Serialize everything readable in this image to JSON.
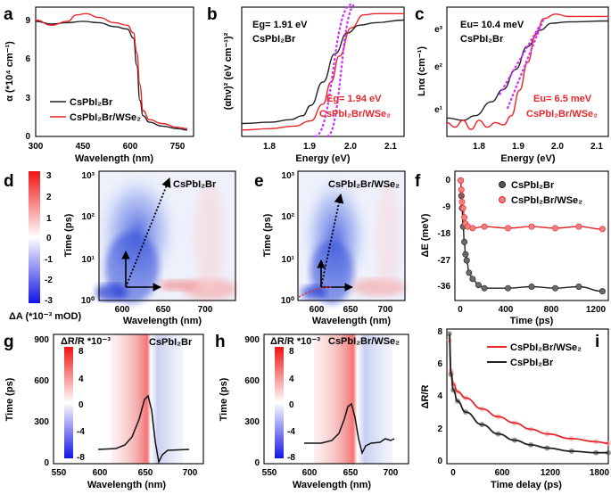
{
  "colors": {
    "black": "#222222",
    "red": "#e8262c",
    "magenta": "#cc33ff",
    "blue": "#1f3fd6",
    "pos": "#f01f1f"
  },
  "panels": {
    "a": {
      "letter": "a",
      "ylabel": "α (*10⁴ cm⁻¹)",
      "xlabel": "Wavelength (nm)",
      "xticks": [
        "300",
        "450",
        "600",
        "750"
      ],
      "yticks": [
        "0",
        "3",
        "6",
        "9"
      ],
      "legend": [
        "CsPbI₂Br",
        "CsPbI₂Br/WSe₂"
      ]
    },
    "b": {
      "letter": "b",
      "ylabel": "(αhν)² (eV cm⁻¹)²",
      "xlabel": "Energy (eV)",
      "xticks": [
        "1.8",
        "1.9",
        "2.0",
        "2.1"
      ],
      "ann1": "Eg= 1.91 eV",
      "ann1b": "CsPbI₂Br",
      "ann2": "Eg= 1.94 eV",
      "ann2b": "CsPbI₂Br/WSe₂"
    },
    "c": {
      "letter": "c",
      "ylabel": "Lnα (cm⁻¹)",
      "xlabel": "Energy (eV)",
      "xticks": [
        "1.8",
        "1.9",
        "2.0",
        "2.1"
      ],
      "yticks": [
        "e¹",
        "e²",
        "e³"
      ],
      "ann1": "Eu= 10.4 meV",
      "ann1b": "CsPbI₂Br",
      "ann2": "Eu= 6.5 meV",
      "ann2b": "CsPbI₂Br/WSe₂"
    },
    "d": {
      "letter": "d",
      "ylabel": "Time (ps)",
      "xlabel": "Wavelength (nm)",
      "xticks": [
        "600",
        "650",
        "700"
      ],
      "yticks": [
        "10⁰",
        "10¹",
        "10²",
        "10³"
      ],
      "label": "CsPbI₂Br",
      "cbar_title": "ΔA (*10⁻³ mOD)",
      "cbar_ticks": [
        "3",
        "2",
        "1",
        "0",
        "-1",
        "-2",
        "-3"
      ]
    },
    "e": {
      "letter": "e",
      "ylabel": "Time (ps)",
      "xlabel": "Wavelength (nm)",
      "xticks": [
        "600",
        "650",
        "700"
      ],
      "yticks": [
        "10⁰",
        "10¹",
        "10²",
        "10³"
      ],
      "label": "CsPbI₂Br/WSe₂"
    },
    "f": {
      "letter": "f",
      "ylabel": "ΔE (meV)",
      "xlabel": "Time (ps)",
      "xticks": [
        "0",
        "400",
        "800",
        "1200"
      ],
      "yticks": [
        "0",
        "-9",
        "-18",
        "-27",
        "-36"
      ],
      "legend": [
        "CsPbI₂Br",
        "CsPbI₂Br/WSe₂"
      ]
    },
    "g": {
      "letter": "g",
      "ylabel": "Time (ps)",
      "xlabel": "Wavelength (nm)",
      "xticks": [
        "550",
        "600",
        "650",
        "700"
      ],
      "yticks": [
        "0",
        "300",
        "600",
        "900"
      ],
      "label": "CsPbI₂Br",
      "cbar_title": "ΔR/R *10⁻³",
      "cbar_ticks": [
        "8",
        "4",
        "0",
        "-4",
        "-8"
      ]
    },
    "h": {
      "letter": "h",
      "ylabel": "Time (ps)",
      "xlabel": "Wavelength (nm)",
      "xticks": [
        "550",
        "600",
        "650",
        "700"
      ],
      "yticks": [
        "0",
        "300",
        "600",
        "900"
      ],
      "label": "CsPbI₂Br/WSe₂",
      "cbar_title": "ΔR/R *10⁻³",
      "cbar_ticks": [
        "8",
        "4",
        "0",
        "-4",
        "-8"
      ]
    },
    "i": {
      "letter": "i",
      "ylabel": "ΔR/R",
      "xlabel": "Time delay (ps)",
      "xticks": [
        "0",
        "600",
        "1200",
        "1800"
      ],
      "yticks": [
        "0",
        "2",
        "4",
        "6",
        "8"
      ],
      "legend": [
        "CsPbI₂Br/WSe₂",
        "CsPbI₂Br"
      ]
    }
  },
  "chart_data": [
    {
      "panel": "a",
      "type": "line",
      "xlabel": "Wavelength (nm)",
      "ylabel": "α (*10⁴ cm⁻¹)",
      "xlim": [
        300,
        800
      ],
      "ylim": [
        0,
        10
      ],
      "series": [
        {
          "name": "CsPbI₂Br",
          "x": [
            300,
            350,
            400,
            450,
            500,
            550,
            590,
            610,
            620,
            630,
            640,
            660,
            700,
            750,
            780
          ],
          "y": [
            8.9,
            8.7,
            8.8,
            8.9,
            8.8,
            8.5,
            8.3,
            7.6,
            5.5,
            2.8,
            1.6,
            1.1,
            0.8,
            0.6,
            0.5
          ]
        },
        {
          "name": "CsPbI₂Br/WSe₂",
          "x": [
            300,
            350,
            400,
            430,
            460,
            500,
            550,
            590,
            610,
            620,
            630,
            640,
            660,
            700,
            750,
            780
          ],
          "y": [
            9.0,
            8.6,
            8.9,
            9.4,
            9.5,
            9.2,
            8.8,
            8.6,
            8.0,
            6.5,
            4.0,
            2.0,
            1.3,
            1.0,
            0.7,
            0.6
          ]
        }
      ]
    },
    {
      "panel": "b",
      "type": "line",
      "xlabel": "Energy (eV)",
      "ylabel": "(αhν)² (eV cm⁻¹)²",
      "xlim": [
        1.73,
        2.13
      ],
      "ylim": [
        0,
        1
      ],
      "series": [
        {
          "name": "CsPbI₂Br",
          "x": [
            1.73,
            1.8,
            1.85,
            1.88,
            1.9,
            1.93,
            1.96,
            1.99,
            2.02,
            2.06,
            2.13
          ],
          "y": [
            0.1,
            0.11,
            0.13,
            0.16,
            0.24,
            0.42,
            0.64,
            0.8,
            0.86,
            0.88,
            0.9
          ]
        },
        {
          "name": "CsPbI₂Br/WSe₂",
          "x": [
            1.73,
            1.8,
            1.86,
            1.9,
            1.93,
            1.95,
            1.97,
            2.0,
            2.03,
            2.06,
            2.13
          ],
          "y": [
            0.05,
            0.06,
            0.08,
            0.12,
            0.25,
            0.42,
            0.62,
            0.84,
            0.94,
            0.95,
            0.95
          ]
        },
        {
          "name": "fit CsPbI₂Br",
          "x": [
            1.91,
            2.0
          ],
          "y": [
            0.0,
            1.02
          ]
        },
        {
          "name": "fit CsPbI₂Br/WSe₂",
          "x": [
            1.94,
            2.01
          ],
          "y": [
            0.0,
            1.02
          ]
        }
      ]
    },
    {
      "panel": "c",
      "type": "line",
      "xlabel": "Energy (eV)",
      "ylabel": "Lnα",
      "xlim": [
        1.73,
        2.13
      ],
      "ylim": [
        0.6,
        3.4
      ],
      "series": [
        {
          "name": "CsPbI₂Br",
          "x": [
            1.73,
            1.77,
            1.8,
            1.84,
            1.87,
            1.9,
            1.93,
            1.96,
            1.99,
            2.03,
            2.13
          ],
          "y": [
            1.0,
            0.95,
            1.05,
            1.35,
            1.62,
            2.05,
            2.55,
            2.9,
            3.05,
            3.08,
            3.1
          ]
        },
        {
          "name": "CsPbI₂Br/WSe₂",
          "x": [
            1.73,
            1.75,
            1.77,
            1.79,
            1.81,
            1.83,
            1.85,
            1.87,
            1.89,
            1.91,
            1.93,
            1.95,
            1.97,
            2.0,
            2.03,
            2.13
          ],
          "y": [
            0.9,
            0.8,
            0.95,
            0.75,
            0.95,
            0.8,
            0.9,
            0.85,
            1.05,
            1.6,
            2.2,
            2.8,
            3.15,
            3.25,
            3.2,
            3.2
          ]
        }
      ]
    },
    {
      "panel": "f",
      "type": "scatter",
      "xlabel": "Time (ps)",
      "ylabel": "ΔE (meV)",
      "xlim": [
        -50,
        1250
      ],
      "ylim": [
        -40,
        2
      ],
      "series": [
        {
          "name": "CsPbI₂Br",
          "x": [
            0,
            5,
            10,
            20,
            30,
            40,
            50,
            70,
            100,
            150,
            200,
            400,
            600,
            800,
            1000,
            1200
          ],
          "y": [
            -1,
            -6,
            -10,
            -16,
            -21,
            -25,
            -27,
            -31,
            -33,
            -35,
            -36,
            -36,
            -35.5,
            -36,
            -35.5,
            -37
          ]
        },
        {
          "name": "CsPbI₂Br/WSe₂",
          "x": [
            0,
            5,
            10,
            20,
            30,
            40,
            60,
            100,
            200,
            400,
            600,
            800,
            1000,
            1200
          ],
          "y": [
            -1,
            -4,
            -8,
            -10,
            -13,
            -15,
            -16,
            -16.5,
            -16,
            -16.5,
            -16,
            -16.5,
            -16,
            -16.8
          ]
        }
      ]
    },
    {
      "panel": "i",
      "type": "line",
      "xlabel": "Time delay (ps)",
      "ylabel": "ΔR/R",
      "xlim": [
        -30,
        1950
      ],
      "ylim": [
        -0.3,
        8.3
      ],
      "series": [
        {
          "name": "CsPbI₂Br/WSe₂",
          "x": [
            0,
            20,
            50,
            100,
            200,
            400,
            600,
            800,
            1000,
            1200,
            1500,
            1800,
            1950
          ],
          "y": [
            7.6,
            5.6,
            4.8,
            4.3,
            3.9,
            3.2,
            2.7,
            2.3,
            1.9,
            1.6,
            1.3,
            1.1,
            1.0
          ]
        },
        {
          "name": "CsPbI₂Br",
          "x": [
            0,
            20,
            50,
            100,
            200,
            400,
            600,
            800,
            1000,
            1200,
            1500,
            1800,
            1950
          ],
          "y": [
            8.0,
            5.4,
            4.4,
            3.7,
            3.0,
            2.2,
            1.6,
            1.2,
            0.9,
            0.7,
            0.5,
            0.4,
            0.4
          ]
        }
      ]
    }
  ]
}
